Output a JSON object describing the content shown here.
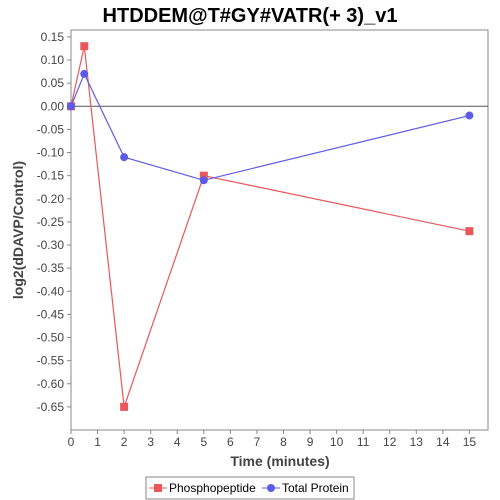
{
  "chart_data": {
    "type": "line",
    "title": "HTDDEM@T#GY#VATR(+ 3)_v1",
    "xlabel": "Time (minutes)",
    "ylabel": "log2(dDAVP/Control)",
    "xlim": [
      0,
      15.7
    ],
    "ylim": [
      -0.7,
      0.165
    ],
    "xticks": [
      0,
      1,
      2,
      3,
      4,
      5,
      6,
      7,
      8,
      9,
      10,
      11,
      12,
      13,
      14,
      15
    ],
    "yticks": [
      0.15,
      0.1,
      0.05,
      0.0,
      -0.05,
      -0.1,
      -0.15,
      -0.2,
      -0.25,
      -0.3,
      -0.35,
      -0.4,
      -0.45,
      -0.5,
      -0.55,
      -0.6,
      -0.65
    ],
    "ytick_labels": [
      "0.15",
      "0.10",
      "0.05",
      "0.00",
      "-0.05",
      "-0.10",
      "-0.15",
      "-0.20",
      "-0.25",
      "-0.30",
      "-0.35",
      "-0.40",
      "-0.45",
      "-0.50",
      "-0.55",
      "-0.60",
      "-0.65"
    ],
    "zero_line": 0,
    "grid": false,
    "legend_position": "bottom-center",
    "series": [
      {
        "name": "Phosphopeptide",
        "color": "#e8575a",
        "marker": "square",
        "x": [
          0,
          0.5,
          2,
          5,
          15
        ],
        "y": [
          0.0,
          0.13,
          -0.65,
          -0.15,
          -0.27
        ]
      },
      {
        "name": "Total Protein",
        "color": "#5b5be8",
        "marker": "circle",
        "x": [
          0,
          0.5,
          2,
          5,
          15
        ],
        "y": [
          0.0,
          0.07,
          -0.11,
          -0.16,
          -0.02
        ]
      }
    ]
  }
}
